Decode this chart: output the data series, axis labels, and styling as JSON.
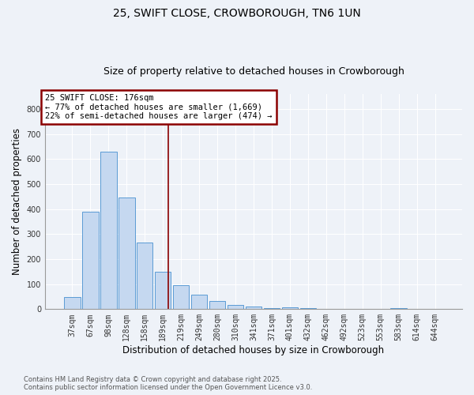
{
  "title": "25, SWIFT CLOSE, CROWBOROUGH, TN6 1UN",
  "subtitle": "Size of property relative to detached houses in Crowborough",
  "xlabel": "Distribution of detached houses by size in Crowborough",
  "ylabel": "Number of detached properties",
  "categories": [
    "37sqm",
    "67sqm",
    "98sqm",
    "128sqm",
    "158sqm",
    "189sqm",
    "219sqm",
    "249sqm",
    "280sqm",
    "310sqm",
    "341sqm",
    "371sqm",
    "401sqm",
    "432sqm",
    "462sqm",
    "492sqm",
    "523sqm",
    "553sqm",
    "583sqm",
    "614sqm",
    "644sqm"
  ],
  "values": [
    47,
    390,
    630,
    445,
    265,
    150,
    97,
    58,
    33,
    18,
    10,
    4,
    8,
    3,
    0,
    0,
    0,
    0,
    5,
    0,
    0
  ],
  "bar_color": "#c5d8f0",
  "bar_edge_color": "#5b9bd5",
  "vline_x": 5.3,
  "vline_color": "#8b0000",
  "annotation_title": "25 SWIFT CLOSE: 176sqm",
  "annotation_line1": "← 77% of detached houses are smaller (1,669)",
  "annotation_line2": "22% of semi-detached houses are larger (474) →",
  "annotation_box_edgecolor": "#8b0000",
  "background_color": "#eef2f8",
  "grid_color": "#ffffff",
  "ylim": [
    0,
    860
  ],
  "yticks": [
    0,
    100,
    200,
    300,
    400,
    500,
    600,
    700,
    800
  ],
  "footer_line1": "Contains HM Land Registry data © Crown copyright and database right 2025.",
  "footer_line2": "Contains public sector information licensed under the Open Government Licence v3.0.",
  "title_fontsize": 10,
  "subtitle_fontsize": 9,
  "tick_fontsize": 7,
  "label_fontsize": 8.5,
  "annotation_fontsize": 7.5,
  "footer_fontsize": 6
}
